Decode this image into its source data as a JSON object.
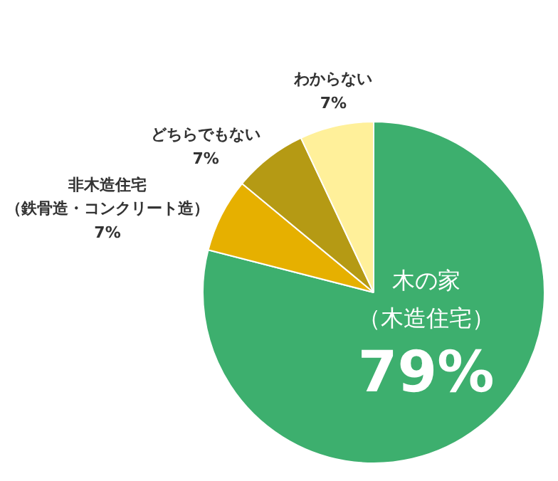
{
  "chart_data": {
    "type": "pie",
    "categories": [
      "木の家（木造住宅）",
      "非木造住宅（鉄骨造・コンクリート造）",
      "どちらでもない",
      "わからない"
    ],
    "values": [
      79,
      7,
      7,
      7
    ],
    "colors": [
      "#3daf6e",
      "#e6b000",
      "#b59a14",
      "#fff09a"
    ],
    "value_labels": [
      "79%",
      "7%",
      "7%",
      "7%"
    ]
  }
}
